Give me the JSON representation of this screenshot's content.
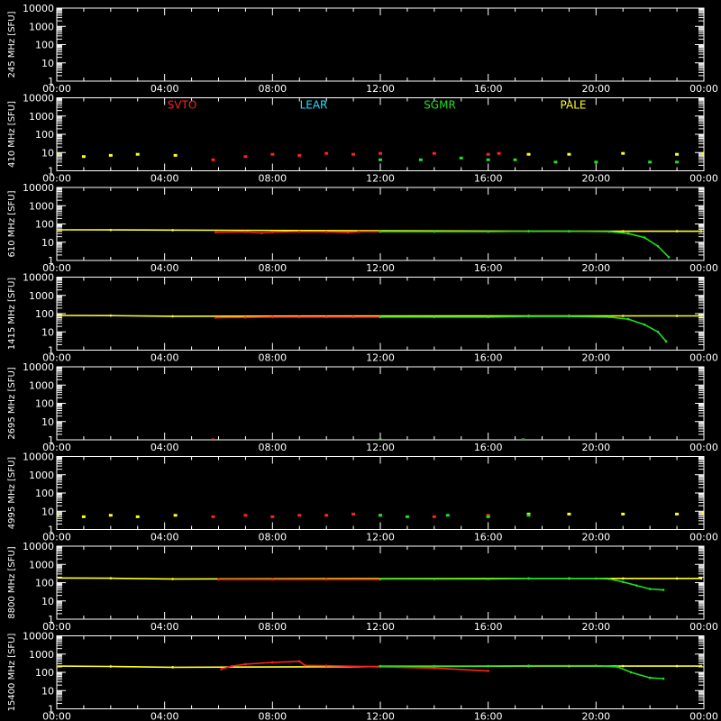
{
  "chart_data": [
    {
      "type": "scatter",
      "ylabel": "245 MHz [SFU]",
      "yscale": "log",
      "ylim": [
        1,
        10000
      ],
      "xlim": [
        "00:00",
        "24:00"
      ],
      "x_ticks": [
        "00:00",
        "04:00",
        "08:00",
        "12:00",
        "16:00",
        "20:00",
        "00:00"
      ],
      "y_ticks": [
        "1",
        "10",
        "100",
        "1000",
        "10000"
      ],
      "series": []
    },
    {
      "type": "scatter",
      "ylabel": "410 MHz [SFU]",
      "yscale": "log",
      "ylim": [
        1,
        10000
      ],
      "x_ticks": [
        "00:00",
        "04:00",
        "08:00",
        "12:00",
        "16:00",
        "20:00",
        "00:00"
      ],
      "y_ticks": [
        "1",
        "10",
        "100",
        "1000",
        "10000"
      ],
      "legend": [
        {
          "label": "SVTO",
          "color": "#ff2020"
        },
        {
          "label": "LEAR",
          "color": "#20e0ff"
        },
        {
          "label": "SGMR",
          "color": "#20e020"
        },
        {
          "label": "PALE",
          "color": "#ffff20"
        }
      ],
      "series": [
        {
          "name": "PALE",
          "color": "#ffff20",
          "x": [
            0.0,
            1.0,
            2.0,
            3.0,
            4.4,
            17.5,
            19.0,
            21.0,
            23.0,
            24.0
          ],
          "y": [
            8,
            6,
            7,
            8,
            7,
            8,
            8,
            9,
            8,
            9
          ]
        },
        {
          "name": "SVTO",
          "color": "#ff2020",
          "x": [
            5.8,
            7.0,
            8.0,
            9.0,
            10.0,
            11.0,
            12.0,
            14.0,
            16.0,
            16.4
          ],
          "y": [
            4,
            6,
            8,
            7,
            9,
            8,
            9,
            9,
            8,
            9
          ]
        },
        {
          "name": "SGMR",
          "color": "#20e020",
          "x": [
            12.0,
            13.5,
            15.0,
            16.0,
            17.0,
            18.5,
            20.0,
            22.0,
            23.0
          ],
          "y": [
            4,
            4,
            5,
            4,
            4,
            3,
            3,
            3,
            3
          ]
        }
      ]
    },
    {
      "type": "line",
      "ylabel": "610 MHz [SFU]",
      "yscale": "log",
      "ylim": [
        1,
        10000
      ],
      "x_ticks": [
        "00:00",
        "04:00",
        "08:00",
        "12:00",
        "16:00",
        "20:00",
        "00:00"
      ],
      "y_ticks": [
        "1",
        "10",
        "100",
        "1000",
        "10000"
      ],
      "series": [
        {
          "name": "PALE",
          "color": "#ffff20",
          "x": [
            0.0,
            2.0,
            4.3,
            17.5,
            19.0,
            21.0,
            23.0,
            23.9
          ],
          "y": [
            48,
            47,
            46,
            40,
            40,
            40,
            40,
            40
          ]
        },
        {
          "name": "SVTO",
          "color": "#ff2020",
          "x": [
            5.9,
            7.0,
            7.6,
            8.0,
            9.0,
            10.0,
            10.8,
            11.2,
            12.0
          ],
          "y": [
            35,
            37,
            32,
            36,
            38,
            37,
            34,
            38,
            38
          ]
        },
        {
          "name": "SGMR",
          "color": "#20e020",
          "x": [
            12.0,
            14.0,
            16.0,
            17.5,
            19.0,
            20.5,
            21.2,
            21.8,
            22.3,
            22.7
          ],
          "y": [
            38,
            38,
            38,
            40,
            40,
            38,
            30,
            18,
            6,
            1.5
          ]
        }
      ]
    },
    {
      "type": "line",
      "ylabel": "1415 MHz [SFU]",
      "yscale": "log",
      "ylim": [
        1,
        10000
      ],
      "x_ticks": [
        "00:00",
        "04:00",
        "08:00",
        "12:00",
        "16:00",
        "20:00",
        "00:00"
      ],
      "y_ticks": [
        "1",
        "10",
        "100",
        "1000",
        "10000"
      ],
      "series": [
        {
          "name": "PALE",
          "color": "#ffff20",
          "x": [
            0.0,
            2.0,
            4.3,
            17.5,
            19.0,
            21.0,
            23.0,
            23.9
          ],
          "y": [
            80,
            78,
            72,
            75,
            75,
            75,
            75,
            75
          ]
        },
        {
          "name": "SVTO",
          "color": "#ff2020",
          "x": [
            5.9,
            7.0,
            8.0,
            9.0,
            10.0,
            11.0,
            12.0
          ],
          "y": [
            60,
            62,
            65,
            65,
            65,
            65,
            65
          ]
        },
        {
          "name": "SGMR",
          "color": "#20e020",
          "x": [
            12.0,
            14.0,
            16.0,
            17.5,
            19.0,
            20.5,
            21.2,
            21.8,
            22.3,
            22.6
          ],
          "y": [
            65,
            65,
            65,
            70,
            70,
            65,
            50,
            25,
            10,
            3
          ]
        }
      ]
    },
    {
      "type": "scatter",
      "ylabel": "2695 MHz [SFU]",
      "yscale": "log",
      "ylim": [
        1,
        10000
      ],
      "x_ticks": [
        "00:00",
        "04:00",
        "08:00",
        "12:00",
        "16:00",
        "20:00",
        "00:00"
      ],
      "y_ticks": [
        "1",
        "10",
        "100",
        "1000",
        "10000"
      ],
      "series": [
        {
          "name": "SVTO",
          "color": "#ff2020",
          "x": [
            5.8,
            12.0
          ],
          "y": [
            1,
            1
          ]
        },
        {
          "name": "SGMR",
          "color": "#20e020",
          "x": [
            12.0,
            17.3
          ],
          "y": [
            1,
            1
          ]
        }
      ]
    },
    {
      "type": "scatter",
      "ylabel": "4995 MHz [SFU]",
      "yscale": "log",
      "ylim": [
        1,
        10000
      ],
      "x_ticks": [
        "00:00",
        "04:00",
        "08:00",
        "12:00",
        "16:00",
        "20:00",
        "00:00"
      ],
      "y_ticks": [
        "1",
        "10",
        "100",
        "1000",
        "10000"
      ],
      "series": [
        {
          "name": "PALE",
          "color": "#ffff20",
          "x": [
            0.0,
            1.0,
            2.0,
            3.0,
            4.4,
            17.5,
            19.0,
            21.0,
            23.0,
            24.0
          ],
          "y": [
            6,
            5,
            6,
            5,
            6,
            7,
            7,
            7,
            7,
            8
          ]
        },
        {
          "name": "SVTO",
          "color": "#ff2020",
          "x": [
            5.8,
            7.0,
            8.0,
            9.0,
            10.0,
            11.0,
            12.0,
            14.0,
            16.0
          ],
          "y": [
            5,
            6,
            5,
            6,
            6,
            7,
            6,
            5,
            6
          ]
        },
        {
          "name": "SGMR",
          "color": "#20e020",
          "x": [
            12.0,
            13.0,
            14.5,
            16.0,
            17.5
          ],
          "y": [
            6,
            5,
            6,
            5,
            6
          ]
        }
      ]
    },
    {
      "type": "line",
      "ylabel": "8800 MHz [SFU]",
      "yscale": "log",
      "ylim": [
        1,
        10000
      ],
      "x_ticks": [
        "00:00",
        "04:00",
        "08:00",
        "12:00",
        "16:00",
        "20:00",
        "00:00"
      ],
      "y_ticks": [
        "1",
        "10",
        "100",
        "1000",
        "10000"
      ],
      "series": [
        {
          "name": "PALE",
          "color": "#ffff20",
          "x": [
            0.0,
            2.0,
            4.3,
            17.5,
            19.0,
            21.0,
            23.0,
            23.9
          ],
          "y": [
            180,
            175,
            160,
            170,
            170,
            170,
            170,
            170
          ]
        },
        {
          "name": "SVTO",
          "color": "#ff2020",
          "x": [
            6.0,
            8.0,
            10.0,
            12.0
          ],
          "y": [
            150,
            150,
            150,
            150
          ]
        },
        {
          "name": "SGMR",
          "color": "#20e020",
          "x": [
            12.0,
            14.0,
            16.0,
            17.5,
            20.0,
            20.5,
            21.0,
            21.5,
            22.0,
            22.5
          ],
          "y": [
            160,
            160,
            160,
            170,
            170,
            160,
            110,
            70,
            45,
            40
          ]
        }
      ]
    },
    {
      "type": "line",
      "ylabel": "15400 MHz [SFU]",
      "yscale": "log",
      "ylim": [
        1,
        10000
      ],
      "x_ticks": [
        "00:00",
        "04:00",
        "08:00",
        "12:00",
        "16:00",
        "20:00",
        "00:00"
      ],
      "y_ticks": [
        "1",
        "10",
        "100",
        "1000",
        "10000"
      ],
      "series": [
        {
          "name": "PALE",
          "color": "#ffff20",
          "x": [
            0.0,
            2.0,
            4.3,
            17.5,
            19.0,
            21.0,
            23.0,
            23.9
          ],
          "y": [
            220,
            210,
            190,
            220,
            220,
            220,
            220,
            220
          ]
        },
        {
          "name": "SVTO",
          "color": "#ff2020",
          "x": [
            6.1,
            6.5,
            7.0,
            8.0,
            9.0,
            9.2,
            10.0,
            12.0,
            14.0,
            16.0
          ],
          "y": [
            150,
            220,
            280,
            350,
            400,
            240,
            230,
            200,
            170,
            120
          ]
        },
        {
          "name": "SGMR",
          "color": "#20e020",
          "x": [
            12.0,
            14.0,
            16.0,
            17.5,
            20.0,
            20.8,
            21.3,
            22.0,
            22.5
          ],
          "y": [
            220,
            220,
            220,
            230,
            230,
            200,
            100,
            50,
            45
          ]
        }
      ]
    }
  ]
}
